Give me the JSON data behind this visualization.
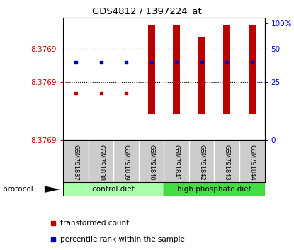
{
  "title": "GDS4812 / 1397224_at",
  "samples": [
    "GSM791837",
    "GSM791838",
    "GSM791839",
    "GSM791840",
    "GSM791841",
    "GSM791842",
    "GSM791843",
    "GSM791844"
  ],
  "group_labels": [
    "control diet",
    "high phosphate diet"
  ],
  "group_sizes": [
    4,
    4
  ],
  "group_color_1": "#aaffaa",
  "group_color_2": "#44dd44",
  "ylabel_left": [
    "8.3769",
    "8.3769",
    "8.3769"
  ],
  "ytick_left_pos": [
    0.78,
    0.5,
    0.0
  ],
  "ylabel_right": [
    "100%",
    "50",
    "25",
    "0"
  ],
  "ytick_right_pos": [
    1.0,
    0.78,
    0.5,
    0.0
  ],
  "hlines": [
    0.78,
    0.5
  ],
  "red_bar_bottom": [
    0.0,
    0.0,
    0.0,
    0.22,
    0.22,
    0.22,
    0.22,
    0.22
  ],
  "red_bar_top": [
    0.0,
    0.0,
    0.0,
    0.99,
    0.99,
    0.88,
    0.99,
    0.99
  ],
  "blue_y": [
    0.67,
    0.67,
    0.67,
    0.67,
    0.67,
    0.67,
    0.67,
    0.67
  ],
  "red_dot_y": [
    0.4,
    0.4,
    0.4,
    null,
    null,
    null,
    null,
    null
  ],
  "red_color": "#BB0000",
  "blue_color": "#0000BB",
  "left_tick_color": "#CC0000",
  "right_tick_color": "#0000CC",
  "bar_width": 0.28,
  "legend_items": [
    "transformed count",
    "percentile rank within the sample"
  ]
}
